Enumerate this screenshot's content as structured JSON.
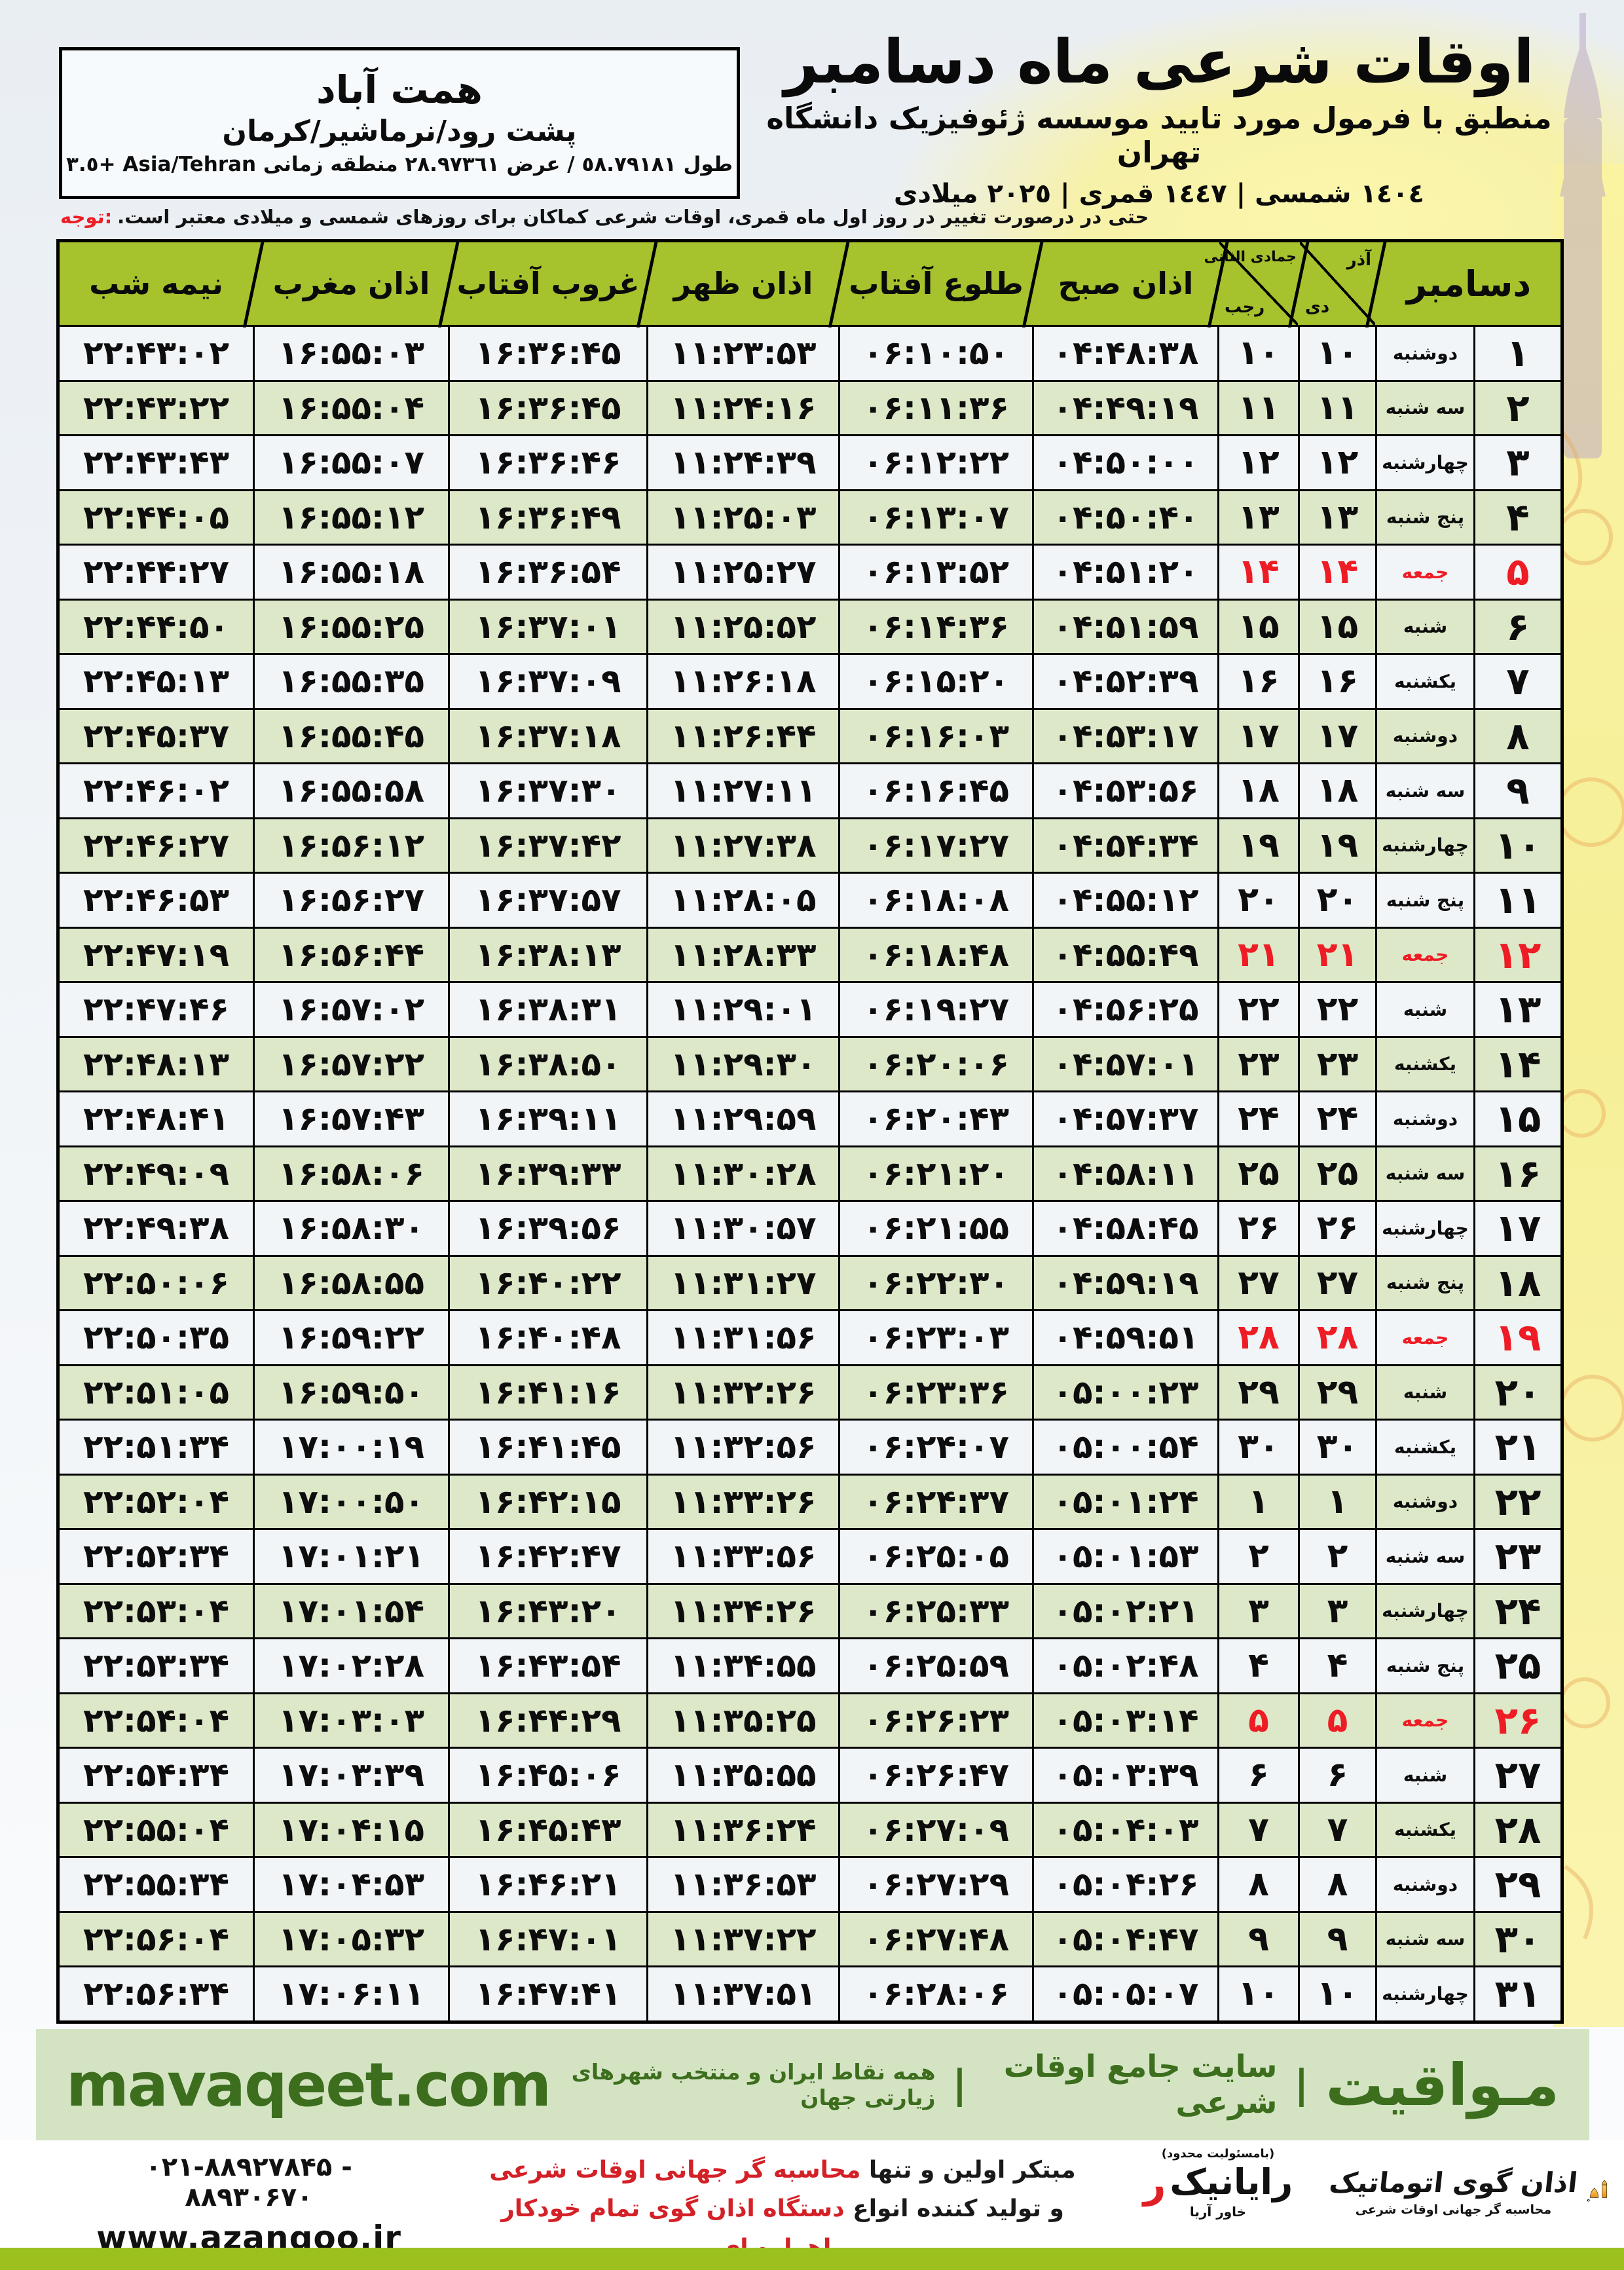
{
  "header": {
    "title": "اوقات شرعی ماه دسامبر",
    "subtitle": "منطبق با فرمول مورد تایید موسسه ژئوفیزیک دانشگاه تهران",
    "calendar_line": "١٤٠٤ شمسی | ١٤٤٧ قمری | ٢٠٢٥ میلادی"
  },
  "location": {
    "name": "همت آباد",
    "region": "پشت رود/نرماشیر/کرمان",
    "coords": "طول ٥٨.٧٩١٨١ / عرض ٢٨.٩٧٣٦١ منطقه زمانی Asia/Tehran +٣.٥"
  },
  "notice": {
    "label": "توجه:",
    "text": "حتی در درصورت تغییر در روز اول ماه قمری، اوقات شرعی کماکان برای روزهای شمسی و میلادی معتبر است."
  },
  "table": {
    "headers": {
      "december": "دسامبر",
      "persian_month_top": "آذر",
      "persian_month_bottom": "دی",
      "hijri_month_top": "جمادی الثانی",
      "hijri_month_bottom": "رجب",
      "fajr": "اذان صبح",
      "sunrise": "طلوع آفتاب",
      "dhuhr": "اذان ظهر",
      "sunset": "غروب آفتاب",
      "maghrib": "اذان مغرب",
      "midnight": "نیمه شب"
    },
    "columns_order": [
      "december_day",
      "weekday",
      "persian_day",
      "hijri_day",
      "fajr",
      "sunrise",
      "dhuhr",
      "sunset",
      "maghrib",
      "midnight"
    ],
    "friday_rows": [
      5,
      12,
      19,
      26
    ],
    "rows": [
      [
        "۱",
        "دوشنبه",
        "۱۰",
        "۱۰",
        "۰۴:۴۸:۳۸",
        "۰۶:۱۰:۵۰",
        "۱۱:۲۳:۵۳",
        "۱۶:۳۶:۴۵",
        "۱۶:۵۵:۰۳",
        "۲۲:۴۳:۰۲"
      ],
      [
        "۲",
        "سه شنبه",
        "۱۱",
        "۱۱",
        "۰۴:۴۹:۱۹",
        "۰۶:۱۱:۳۶",
        "۱۱:۲۴:۱۶",
        "۱۶:۳۶:۴۵",
        "۱۶:۵۵:۰۴",
        "۲۲:۴۳:۲۲"
      ],
      [
        "۳",
        "چهارشنبه",
        "۱۲",
        "۱۲",
        "۰۴:۵۰:۰۰",
        "۰۶:۱۲:۲۲",
        "۱۱:۲۴:۳۹",
        "۱۶:۳۶:۴۶",
        "۱۶:۵۵:۰۷",
        "۲۲:۴۳:۴۳"
      ],
      [
        "۴",
        "پنج شنبه",
        "۱۳",
        "۱۳",
        "۰۴:۵۰:۴۰",
        "۰۶:۱۳:۰۷",
        "۱۱:۲۵:۰۳",
        "۱۶:۳۶:۴۹",
        "۱۶:۵۵:۱۲",
        "۲۲:۴۴:۰۵"
      ],
      [
        "۵",
        "جمعه",
        "۱۴",
        "۱۴",
        "۰۴:۵۱:۲۰",
        "۰۶:۱۳:۵۲",
        "۱۱:۲۵:۲۷",
        "۱۶:۳۶:۵۴",
        "۱۶:۵۵:۱۸",
        "۲۲:۴۴:۲۷"
      ],
      [
        "۶",
        "شنبه",
        "۱۵",
        "۱۵",
        "۰۴:۵۱:۵۹",
        "۰۶:۱۴:۳۶",
        "۱۱:۲۵:۵۲",
        "۱۶:۳۷:۰۱",
        "۱۶:۵۵:۲۵",
        "۲۲:۴۴:۵۰"
      ],
      [
        "۷",
        "یکشنبه",
        "۱۶",
        "۱۶",
        "۰۴:۵۲:۳۹",
        "۰۶:۱۵:۲۰",
        "۱۱:۲۶:۱۸",
        "۱۶:۳۷:۰۹",
        "۱۶:۵۵:۳۵",
        "۲۲:۴۵:۱۳"
      ],
      [
        "۸",
        "دوشنبه",
        "۱۷",
        "۱۷",
        "۰۴:۵۳:۱۷",
        "۰۶:۱۶:۰۳",
        "۱۱:۲۶:۴۴",
        "۱۶:۳۷:۱۸",
        "۱۶:۵۵:۴۵",
        "۲۲:۴۵:۳۷"
      ],
      [
        "۹",
        "سه شنبه",
        "۱۸",
        "۱۸",
        "۰۴:۵۳:۵۶",
        "۰۶:۱۶:۴۵",
        "۱۱:۲۷:۱۱",
        "۱۶:۳۷:۳۰",
        "۱۶:۵۵:۵۸",
        "۲۲:۴۶:۰۲"
      ],
      [
        "۱۰",
        "چهارشنبه",
        "۱۹",
        "۱۹",
        "۰۴:۵۴:۳۴",
        "۰۶:۱۷:۲۷",
        "۱۱:۲۷:۳۸",
        "۱۶:۳۷:۴۲",
        "۱۶:۵۶:۱۲",
        "۲۲:۴۶:۲۷"
      ],
      [
        "۱۱",
        "پنج شنبه",
        "۲۰",
        "۲۰",
        "۰۴:۵۵:۱۲",
        "۰۶:۱۸:۰۸",
        "۱۱:۲۸:۰۵",
        "۱۶:۳۷:۵۷",
        "۱۶:۵۶:۲۷",
        "۲۲:۴۶:۵۳"
      ],
      [
        "۱۲",
        "جمعه",
        "۲۱",
        "۲۱",
        "۰۴:۵۵:۴۹",
        "۰۶:۱۸:۴۸",
        "۱۱:۲۸:۳۳",
        "۱۶:۳۸:۱۳",
        "۱۶:۵۶:۴۴",
        "۲۲:۴۷:۱۹"
      ],
      [
        "۱۳",
        "شنبه",
        "۲۲",
        "۲۲",
        "۰۴:۵۶:۲۵",
        "۰۶:۱۹:۲۷",
        "۱۱:۲۹:۰۱",
        "۱۶:۳۸:۳۱",
        "۱۶:۵۷:۰۲",
        "۲۲:۴۷:۴۶"
      ],
      [
        "۱۴",
        "یکشنبه",
        "۲۳",
        "۲۳",
        "۰۴:۵۷:۰۱",
        "۰۶:۲۰:۰۶",
        "۱۱:۲۹:۳۰",
        "۱۶:۳۸:۵۰",
        "۱۶:۵۷:۲۲",
        "۲۲:۴۸:۱۳"
      ],
      [
        "۱۵",
        "دوشنبه",
        "۲۴",
        "۲۴",
        "۰۴:۵۷:۳۷",
        "۰۶:۲۰:۴۳",
        "۱۱:۲۹:۵۹",
        "۱۶:۳۹:۱۱",
        "۱۶:۵۷:۴۳",
        "۲۲:۴۸:۴۱"
      ],
      [
        "۱۶",
        "سه شنبه",
        "۲۵",
        "۲۵",
        "۰۴:۵۸:۱۱",
        "۰۶:۲۱:۲۰",
        "۱۱:۳۰:۲۸",
        "۱۶:۳۹:۳۳",
        "۱۶:۵۸:۰۶",
        "۲۲:۴۹:۰۹"
      ],
      [
        "۱۷",
        "چهارشنبه",
        "۲۶",
        "۲۶",
        "۰۴:۵۸:۴۵",
        "۰۶:۲۱:۵۵",
        "۱۱:۳۰:۵۷",
        "۱۶:۳۹:۵۶",
        "۱۶:۵۸:۳۰",
        "۲۲:۴۹:۳۸"
      ],
      [
        "۱۸",
        "پنج شنبه",
        "۲۷",
        "۲۷",
        "۰۴:۵۹:۱۹",
        "۰۶:۲۲:۳۰",
        "۱۱:۳۱:۲۷",
        "۱۶:۴۰:۲۲",
        "۱۶:۵۸:۵۵",
        "۲۲:۵۰:۰۶"
      ],
      [
        "۱۹",
        "جمعه",
        "۲۸",
        "۲۸",
        "۰۴:۵۹:۵۱",
        "۰۶:۲۳:۰۳",
        "۱۱:۳۱:۵۶",
        "۱۶:۴۰:۴۸",
        "۱۶:۵۹:۲۲",
        "۲۲:۵۰:۳۵"
      ],
      [
        "۲۰",
        "شنبه",
        "۲۹",
        "۲۹",
        "۰۵:۰۰:۲۳",
        "۰۶:۲۳:۳۶",
        "۱۱:۳۲:۲۶",
        "۱۶:۴۱:۱۶",
        "۱۶:۵۹:۵۰",
        "۲۲:۵۱:۰۵"
      ],
      [
        "۲۱",
        "یکشنبه",
        "۳۰",
        "۳۰",
        "۰۵:۰۰:۵۴",
        "۰۶:۲۴:۰۷",
        "۱۱:۳۲:۵۶",
        "۱۶:۴۱:۴۵",
        "۱۷:۰۰:۱۹",
        "۲۲:۵۱:۳۴"
      ],
      [
        "۲۲",
        "دوشنبه",
        "۱",
        "۱",
        "۰۵:۰۱:۲۴",
        "۰۶:۲۴:۳۷",
        "۱۱:۳۳:۲۶",
        "۱۶:۴۲:۱۵",
        "۱۷:۰۰:۵۰",
        "۲۲:۵۲:۰۴"
      ],
      [
        "۲۳",
        "سه شنبه",
        "۲",
        "۲",
        "۰۵:۰۱:۵۳",
        "۰۶:۲۵:۰۵",
        "۱۱:۳۳:۵۶",
        "۱۶:۴۲:۴۷",
        "۱۷:۰۱:۲۱",
        "۲۲:۵۲:۳۴"
      ],
      [
        "۲۴",
        "چهارشنبه",
        "۳",
        "۳",
        "۰۵:۰۲:۲۱",
        "۰۶:۲۵:۳۳",
        "۱۱:۳۴:۲۶",
        "۱۶:۴۳:۲۰",
        "۱۷:۰۱:۵۴",
        "۲۲:۵۳:۰۴"
      ],
      [
        "۲۵",
        "پنج شنبه",
        "۴",
        "۴",
        "۰۵:۰۲:۴۸",
        "۰۶:۲۵:۵۹",
        "۱۱:۳۴:۵۵",
        "۱۶:۴۳:۵۴",
        "۱۷:۰۲:۲۸",
        "۲۲:۵۳:۳۴"
      ],
      [
        "۲۶",
        "جمعه",
        "۵",
        "۵",
        "۰۵:۰۳:۱۴",
        "۰۶:۲۶:۲۳",
        "۱۱:۳۵:۲۵",
        "۱۶:۴۴:۲۹",
        "۱۷:۰۳:۰۳",
        "۲۲:۵۴:۰۴"
      ],
      [
        "۲۷",
        "شنبه",
        "۶",
        "۶",
        "۰۵:۰۳:۳۹",
        "۰۶:۲۶:۴۷",
        "۱۱:۳۵:۵۵",
        "۱۶:۴۵:۰۶",
        "۱۷:۰۳:۳۹",
        "۲۲:۵۴:۳۴"
      ],
      [
        "۲۸",
        "یکشنبه",
        "۷",
        "۷",
        "۰۵:۰۴:۰۳",
        "۰۶:۲۷:۰۹",
        "۱۱:۳۶:۲۴",
        "۱۶:۴۵:۴۳",
        "۱۷:۰۴:۱۵",
        "۲۲:۵۵:۰۴"
      ],
      [
        "۲۹",
        "دوشنبه",
        "۸",
        "۸",
        "۰۵:۰۴:۲۶",
        "۰۶:۲۷:۲۹",
        "۱۱:۳۶:۵۳",
        "۱۶:۴۶:۲۱",
        "۱۷:۰۴:۵۳",
        "۲۲:۵۵:۳۴"
      ],
      [
        "۳۰",
        "سه شنبه",
        "۹",
        "۹",
        "۰۵:۰۴:۴۷",
        "۰۶:۲۷:۴۸",
        "۱۱:۳۷:۲۲",
        "۱۶:۴۷:۰۱",
        "۱۷:۰۵:۳۲",
        "۲۲:۵۶:۰۴"
      ],
      [
        "۳۱",
        "چهارشنبه",
        "۱۰",
        "۱۰",
        "۰۵:۰۵:۰۷",
        "۰۶:۲۸:۰۶",
        "۱۱:۳۷:۵۱",
        "۱۶:۴۷:۴۱",
        "۱۷:۰۶:۱۱",
        "۲۲:۵۶:۳۴"
      ]
    ]
  },
  "mavaqeet": {
    "name_fa": "مـواقیت",
    "sep": "|",
    "tag1": "سایت جامع اوقات شرعی",
    "tag2": "همه نقاط ایران و منتخب شهرهای زیارتی جهان",
    "domain": "mavaqeet.com"
  },
  "footer": {
    "phone": "۰۲۱-۸۸۹۲۷۸۴۵ - ۸۸۹۳۰۶۷۰",
    "website": "www.azangoo.ir",
    "line1_black": "مبتکر اولین و تنها ",
    "line1_red": "محاسبه گر جهانی اوقات شرعی",
    "line2_black": "و تولید کننده انواع ",
    "line2_red": "دستگاه اذان گوی تمام خودکار ماهواره ای",
    "rayanik_small": "(بامسئولیت محدود)",
    "rayanik_r": "ر",
    "rayanik_name": "رایانیک",
    "rayanik_sub": "خاور آریا",
    "azangoo_title": "اذان گوی اتوماتیک",
    "azangoo_sub": "محاسبه گر جهانی اوقات شرعی",
    "azangoo_latin_a": "a",
    "azangoo_latin_rest": "zangoo"
  },
  "colors": {
    "header_green": "#a6c22c",
    "row_even_green": "#dde8c8",
    "row_odd_light": "#f2f5f7",
    "friday_red": "#ee1c24",
    "mavaqeet_bg": "#d4e4c3",
    "mavaqeet_green": "#3c6e1e",
    "bottom_band_green": "#9cc11f",
    "azangoo_orange": "#f08a12"
  }
}
